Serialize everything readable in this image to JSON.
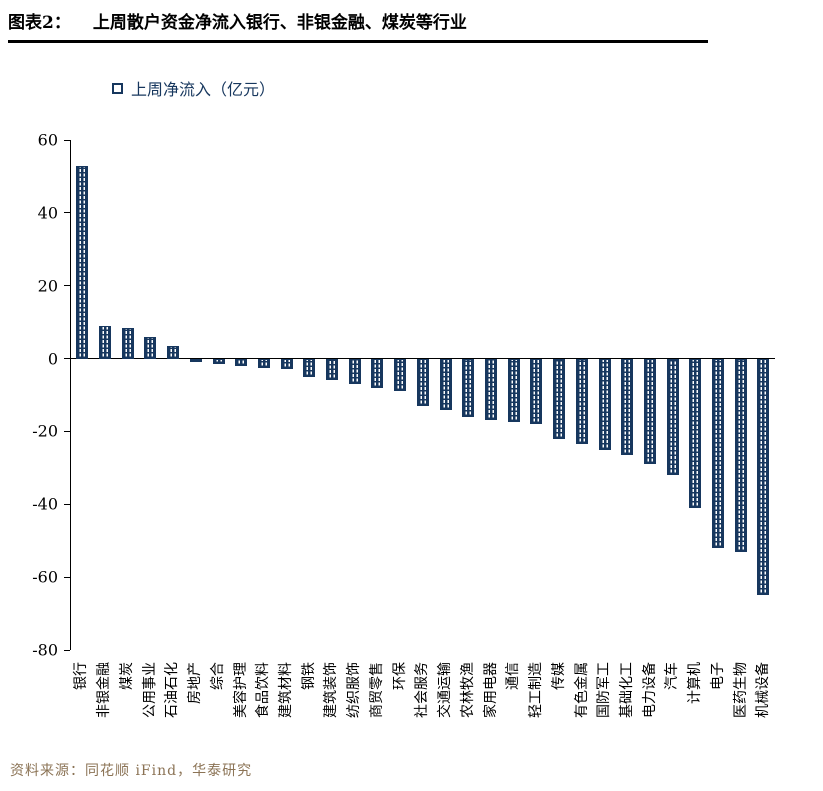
{
  "header": {
    "label": "图表2：",
    "title": "上周散户资金净流入银行、非银金融、煤炭等行业"
  },
  "legend": {
    "text": "上周净流入（亿元）"
  },
  "footer": {
    "text": "资料来源：同花顺 iFind，华泰研究"
  },
  "colors": {
    "bar": "#17375E",
    "axis": "#000000",
    "footer_text": "#8B7355"
  },
  "chart_data": {
    "type": "bar",
    "title": "上周散户资金净流入银行、非银金融、煤炭等行业",
    "legend": "上周净流入（亿元）",
    "ylabel": "亿元",
    "ylim": [
      -80,
      60
    ],
    "yticks": [
      60,
      40,
      20,
      0,
      -20,
      -40,
      -60,
      -80
    ],
    "grid": false,
    "legend_position": "top-left",
    "bar_color": "#17375E",
    "categories": [
      "银行",
      "非银金融",
      "煤炭",
      "公用事业",
      "石油石化",
      "房地产",
      "综合",
      "美容护理",
      "食品饮料",
      "建筑材料",
      "钢铁",
      "建筑装饰",
      "纺织服饰",
      "商贸零售",
      "环保",
      "社会服务",
      "交通运输",
      "农林牧渔",
      "家用电器",
      "通信",
      "轻工制造",
      "传媒",
      "有色金属",
      "国防军工",
      "基础化工",
      "电力设备",
      "汽车",
      "计算机",
      "电子",
      "医药生物",
      "机械设备"
    ],
    "values": [
      53,
      9,
      8.5,
      6,
      3.5,
      -1,
      -1.5,
      -2,
      -2.5,
      -3,
      -5,
      -6,
      -7,
      -8,
      -9,
      -13,
      -14,
      -16,
      -17,
      -17.5,
      -18,
      -22,
      -23.5,
      -25,
      -26.5,
      -29,
      -32,
      -41,
      -52,
      -53,
      -65
    ]
  }
}
